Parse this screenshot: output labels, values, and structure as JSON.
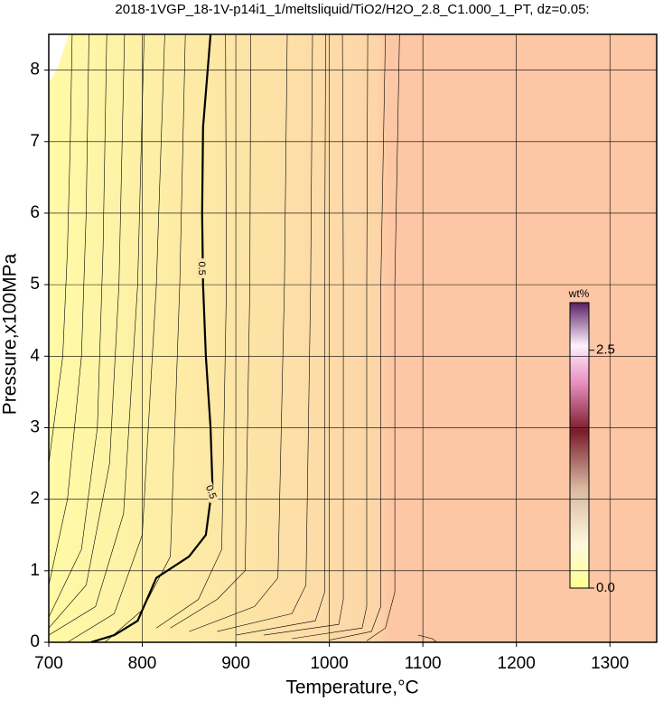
{
  "chart_data": {
    "type": "contour",
    "title": "2018-1VGP_18-1V-p14i1_1/meltsliquid/TiO2/H2O_2.8_C1.000_1_PT, dz=0.05:",
    "xlabel": "Temperature,°C",
    "ylabel": "Pressure,x100MPa",
    "xlim": [
      700,
      1350
    ],
    "ylim": [
      0,
      8.5
    ],
    "xticks": [
      700,
      800,
      900,
      1000,
      1100,
      1200,
      1300
    ],
    "yticks": [
      0,
      1,
      2,
      3,
      4,
      5,
      6,
      7,
      8
    ],
    "grid": true,
    "line_color": "#000000",
    "colorbar": {
      "label": "wt%",
      "lim": [
        0,
        3
      ],
      "ticks": [
        {
          "value": 0,
          "label": "0.0"
        },
        2.5
      ]
    },
    "series": [
      {
        "x": [
          700,
          715,
          720,
          723,
          725
        ],
        "values": [
          2.5,
          4,
          5.5,
          7,
          8.5
        ]
      },
      {
        "x": [
          700,
          720,
          735,
          740,
          743
        ],
        "values": [
          0.8,
          2,
          4,
          6,
          8.5
        ]
      },
      {
        "x": [
          700,
          735,
          752,
          758,
          762
        ],
        "values": [
          0.35,
          1.3,
          3,
          5.5,
          8.5
        ]
      },
      {
        "x": [
          700,
          740,
          765,
          775,
          781
        ],
        "values": [
          0.2,
          0.8,
          2.5,
          5,
          8.5
        ]
      },
      {
        "x": [
          700,
          750,
          780,
          795,
          802
        ],
        "values": [
          0.1,
          0.5,
          1.8,
          5,
          8.5
        ]
      },
      {
        "x": [
          720,
          770,
          800,
          815,
          824
        ],
        "values": [
          0,
          0.4,
          1.5,
          5,
          8.5
        ]
      },
      {
        "x": [
          760,
          800,
          830,
          840,
          846
        ],
        "values": [
          0,
          0.45,
          1.2,
          5,
          8.5
        ]
      },
      {
        "level": 0.5,
        "x": [
          745,
          770,
          795,
          815,
          850,
          868,
          875,
          873,
          868,
          865,
          864,
          865,
          873
        ],
        "values": [
          0,
          0.1,
          0.3,
          0.9,
          1.2,
          1.5,
          2.2,
          3,
          4,
          5,
          6,
          7.2,
          8.5
        ]
      },
      {
        "x": [
          815,
          860,
          885,
          890,
          889
        ],
        "values": [
          0.2,
          0.6,
          1.3,
          5,
          8.5
        ]
      },
      {
        "x": [
          830,
          880,
          910,
          915,
          916
        ],
        "values": [
          0.2,
          0.6,
          1.0,
          5,
          8.5
        ]
      },
      {
        "x": [
          850,
          920,
          945,
          952,
          955
        ],
        "values": [
          0.15,
          0.5,
          0.9,
          5,
          8.5
        ]
      },
      {
        "x": [
          880,
          960,
          975,
          980,
          982
        ],
        "values": [
          0.15,
          0.4,
          0.8,
          5,
          8.5
        ]
      },
      {
        "x": [
          900,
          985,
          995,
          995,
          996
        ],
        "values": [
          0.1,
          0.3,
          0.7,
          5,
          8.5
        ]
      },
      {
        "x": [
          930,
          1010,
          1015,
          1015,
          1014
        ],
        "values": [
          0.1,
          0.25,
          0.6,
          5,
          8.5
        ]
      },
      {
        "x": [
          960,
          1035,
          1040,
          1040,
          1041
        ],
        "values": [
          0.05,
          0.2,
          0.5,
          5,
          8.5
        ]
      },
      {
        "x": [
          1000,
          1045,
          1055,
          1055,
          1060
        ],
        "values": [
          0.03,
          0.15,
          0.5,
          5,
          8.5
        ]
      },
      {
        "x": [
          1040,
          1060,
          1070,
          1070,
          1075
        ],
        "values": [
          0.02,
          0.2,
          0.7,
          5,
          8.5
        ]
      },
      {
        "x": [
          1095,
          1110,
          1115
        ],
        "values": [
          0.1,
          0.05,
          0
        ]
      }
    ]
  }
}
